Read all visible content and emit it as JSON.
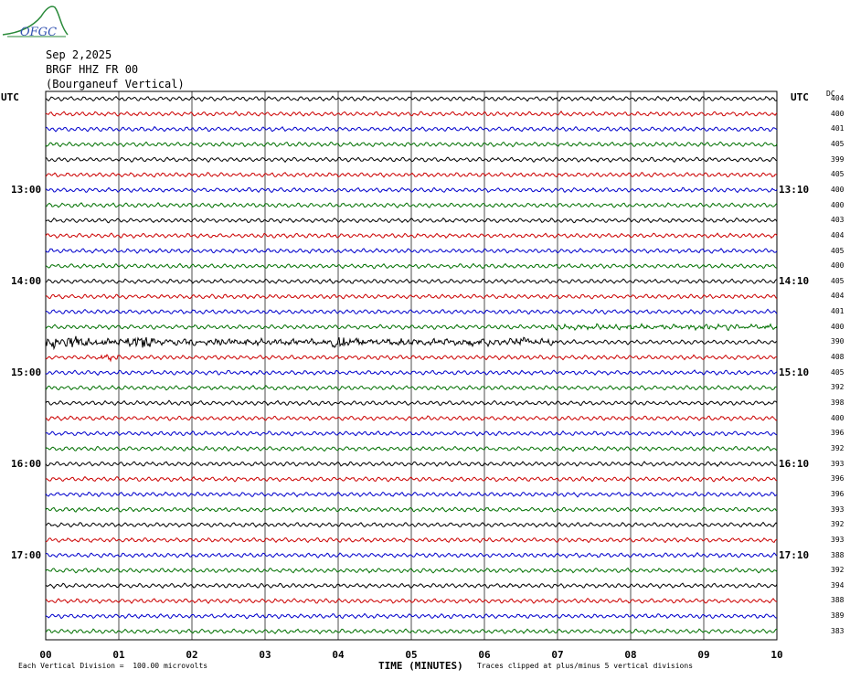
{
  "logo": {
    "text": "OFGC"
  },
  "header": {
    "date": "Sep 2,2025",
    "station": "BRGF HHZ FR 00",
    "location": "(Bourganeuf Vertical)"
  },
  "chart_data": {
    "type": "line",
    "xlabel": "TIME (MINUTES)",
    "x_ticks": [
      "00",
      "01",
      "02",
      "03",
      "04",
      "05",
      "06",
      "07",
      "08",
      "09",
      "10"
    ],
    "xlim": [
      0,
      10
    ],
    "left_axis_label": "UTC",
    "right_axis_label": "UTC",
    "dc_header": "DC",
    "left_time_labels": [
      "13:00",
      "14:00",
      "15:00",
      "16:00",
      "17:00"
    ],
    "right_time_labels": [
      "13:10",
      "14:10",
      "15:10",
      "16:10",
      "17:10"
    ],
    "trace_colors": [
      "#000000",
      "#cc0000",
      "#0000cc",
      "#007000"
    ],
    "trace_count": 36,
    "dc_offsets": [
      "404",
      "400",
      "401",
      "405",
      "399",
      "405",
      "400",
      "400",
      "403",
      "404",
      "405",
      "400",
      "405",
      "404",
      "401",
      "400",
      "390",
      "408",
      "405",
      "392",
      "398",
      "400",
      "396",
      "392",
      "393",
      "396",
      "396",
      "393",
      "392",
      "393",
      "388",
      "392",
      "394",
      "388",
      "389",
      "383"
    ],
    "event_rows": {
      "row16": "Large signal 00-07 min",
      "row15": "Moderate signal 07-10 min"
    },
    "footer_left": "Each Vertical Division =  100.00 microvolts",
    "footer_right": "Traces clipped at plus/minus 5 vertical divisions"
  }
}
